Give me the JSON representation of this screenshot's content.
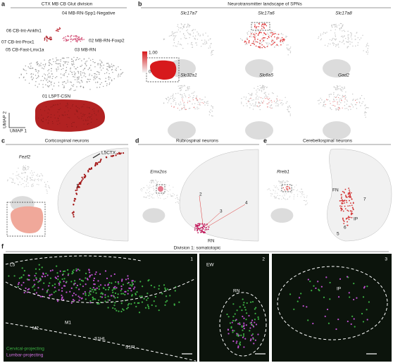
{
  "panel_a": {
    "letter": "a",
    "title": "CTX MB CB Glut division",
    "clusters": [
      "04 MB-RN-Spp1-Negative",
      "06 CB-Int-Ankfn1",
      "07 CB-Int-Prox1",
      "02 MB-RN-Foxp2",
      "05 CB-Fast-Lmx1a",
      "03 MB-RN",
      "01 L5PT-CSN"
    ],
    "axis_y": "UMAP 2",
    "axis_x": "UMAP 1"
  },
  "panel_b": {
    "letter": "b",
    "title": "Neurotransmitter landscape of SPNs",
    "genes": [
      "Slc17a7",
      "Slc17a6",
      "Slc17a8",
      "Slc32a1",
      "Slc6a5",
      "Gad2"
    ],
    "colorbar_max": "1.00",
    "colorbar_min": "0"
  },
  "panel_c": {
    "letter": "c",
    "title": "Corticospinal neurons",
    "gene": "Fezf2",
    "labels": [
      "L5CTX",
      "1"
    ]
  },
  "panel_d": {
    "letter": "d",
    "title": "Rubrospinal neurons",
    "gene": "Emx2os",
    "labels": [
      "2",
      "3",
      "4",
      "RN"
    ]
  },
  "panel_e": {
    "letter": "e",
    "title": "Cerebellospinal neurons",
    "gene": "Rreb1",
    "labels": [
      "FN",
      "7",
      "IP",
      "6",
      "5"
    ]
  },
  "panel_f": {
    "letter": "f",
    "title": "Division 1: somatotopic",
    "tiles": [
      "1",
      "2",
      "3"
    ],
    "regions": [
      "L5",
      "M2",
      "M1",
      "S1HL",
      "S1FL",
      "EW",
      "RN",
      "IP"
    ],
    "legend": [
      "Cervical-projecting",
      "Lumbar-projecting"
    ]
  }
}
